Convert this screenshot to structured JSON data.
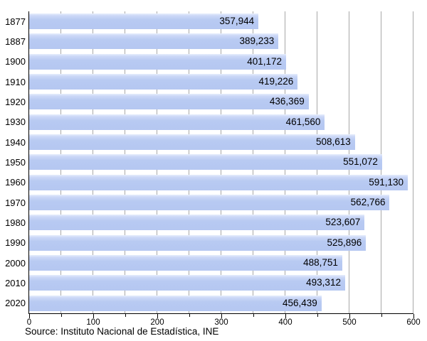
{
  "chart_data": {
    "type": "bar",
    "orientation": "horizontal",
    "title": "",
    "categories": [
      "1877",
      "1887",
      "1900",
      "1910",
      "1920",
      "1930",
      "1940",
      "1950",
      "1960",
      "1970",
      "1980",
      "1990",
      "2000",
      "2010",
      "2020"
    ],
    "values": [
      357944,
      389233,
      401172,
      419226,
      436369,
      461560,
      508613,
      551072,
      591130,
      562766,
      523607,
      525896,
      488751,
      493312,
      456439
    ],
    "value_labels": [
      "357,944",
      "389,233",
      "401,172",
      "419,226",
      "436,369",
      "461,560",
      "508,613",
      "551,072",
      "591,130",
      "562,766",
      "523,607",
      "525,896",
      "488,751",
      "493,312",
      "456,439"
    ],
    "x_axis": {
      "unit_divisor": 1000,
      "display_min": 0,
      "display_max": 600,
      "major_tick_interval": 100,
      "minor_tick_interval": 50,
      "major_tick_labels": [
        "0",
        "100",
        "200",
        "300",
        "400",
        "500",
        "600"
      ]
    },
    "grid": true,
    "legend": "none",
    "colors": {
      "bar_fill": "#b8caf2",
      "bar_highlight": "#e7eefc",
      "gridline": "#a8a8a8",
      "axis": "#000000",
      "text": "#000000",
      "background": "#ffffff"
    }
  },
  "source_note": "Source: Instituto Nacional de Estadística, INE"
}
